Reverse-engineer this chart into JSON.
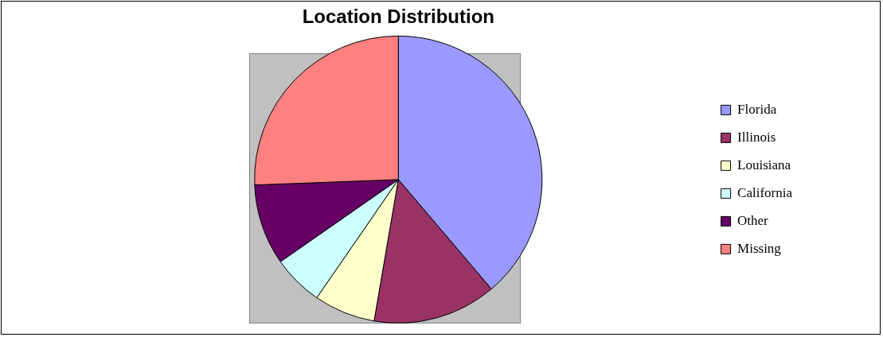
{
  "chart_data": {
    "type": "pie",
    "title": "Location Distribution",
    "categories": [
      "Florida",
      "Illinois",
      "Louisiana",
      "California",
      "Other",
      "Missing"
    ],
    "values": [
      38.8,
      13.9,
      6.9,
      5.7,
      9.1,
      25.6
    ],
    "colors": [
      "#9999ff",
      "#993366",
      "#ffffcc",
      "#ccffff",
      "#660066",
      "#ff8080"
    ],
    "legend": "right"
  }
}
